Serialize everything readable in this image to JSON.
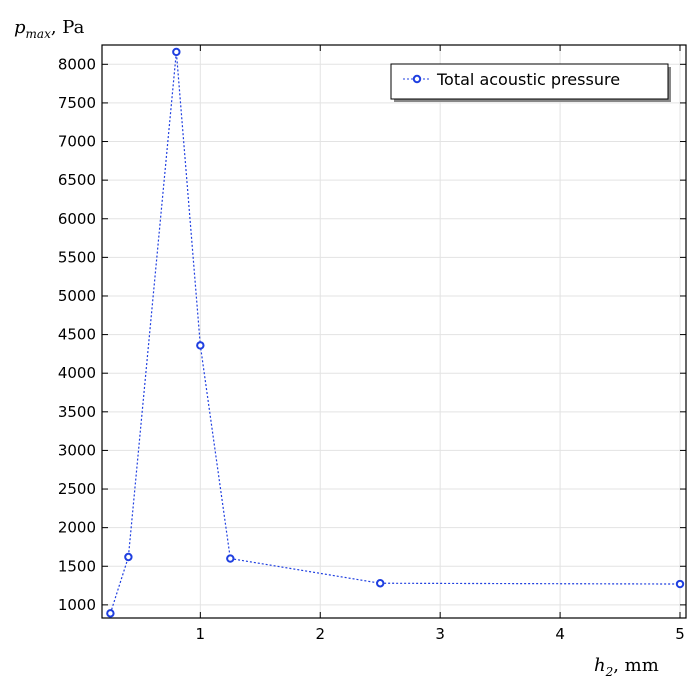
{
  "chart_data": {
    "type": "line",
    "ylabel": "p_max, Pa",
    "ylabel_main": "p",
    "ylabel_sub": "max",
    "ylabel_unit": ", Pa",
    "xlabel": "h_2, mm",
    "xlabel_main": "h",
    "xlabel_sub": "2",
    "xlabel_unit": ", mm",
    "xlim": [
      0.18,
      5.05
    ],
    "ylim": [
      830,
      8250
    ],
    "x_ticks": [
      1,
      2,
      3,
      4,
      5
    ],
    "y_ticks": [
      1000,
      1500,
      2000,
      2500,
      3000,
      3500,
      4000,
      4500,
      5000,
      5500,
      6000,
      6500,
      7000,
      7500,
      8000
    ],
    "grid": true,
    "legend_position": "top-right",
    "series": [
      {
        "name": "Total acoustic pressure",
        "color": "#1f3fe0",
        "marker": "circle",
        "line_style": "dotted",
        "x": [
          0.25,
          0.4,
          0.8,
          1.0,
          1.25,
          2.5,
          5.0
        ],
        "y": [
          890,
          1620,
          8160,
          4360,
          1600,
          1280,
          1270
        ]
      }
    ]
  }
}
